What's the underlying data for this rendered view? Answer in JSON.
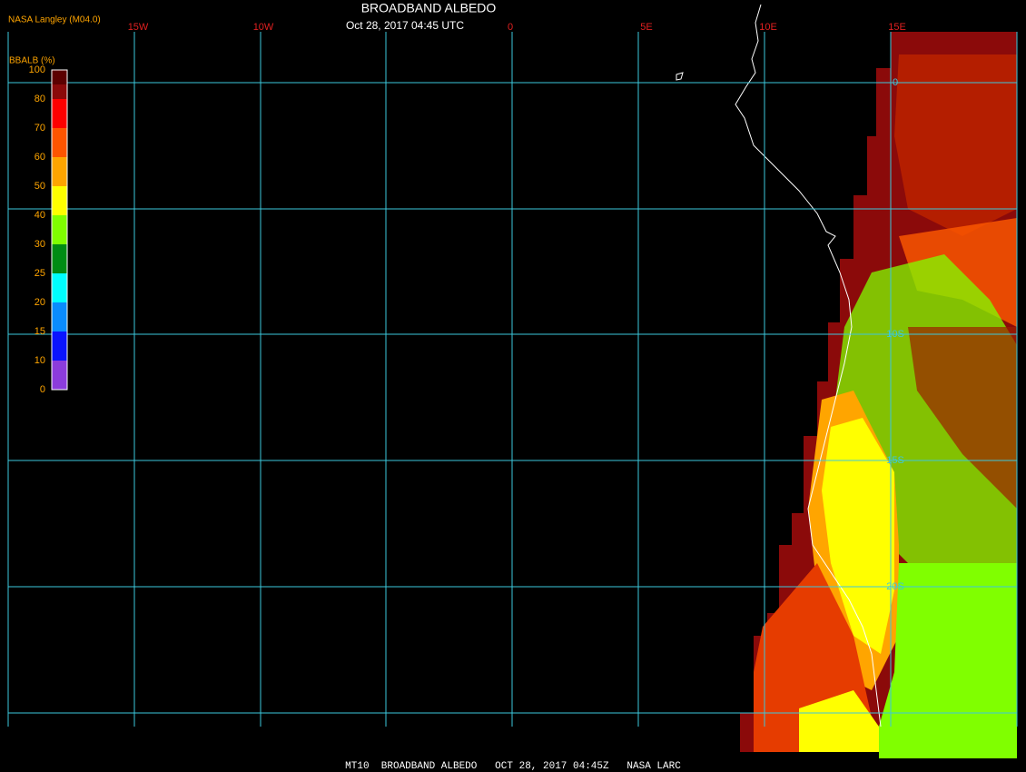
{
  "header": {
    "title": "BROADBAND ALBEDO",
    "subtitle": "Oct 28, 2017 04:45 UTC",
    "credit": "NASA Langley (M04.0)"
  },
  "legend": {
    "title": "BBALB (%)",
    "ticks": [
      100,
      80,
      70,
      60,
      50,
      40,
      30,
      25,
      20,
      15,
      10,
      0
    ],
    "colors": [
      "#5c0000",
      "#8b0a0a",
      "#ff0000",
      "#ff5500",
      "#ffa500",
      "#ffff00",
      "#80ff00",
      "#008c14",
      "#00ffff",
      "#0a8cff",
      "#0a14ff",
      "#8c3cdc"
    ]
  },
  "map": {
    "longitude_labels": [
      "15W",
      "10W",
      "0",
      "5E",
      "10E",
      "15E"
    ],
    "latitude_labels": [
      "0",
      "10S",
      "15S",
      "20S"
    ]
  },
  "footer": "MT10  BROADBAND ALBEDO   OCT 28, 2017 04:45Z   NASA LARC"
}
